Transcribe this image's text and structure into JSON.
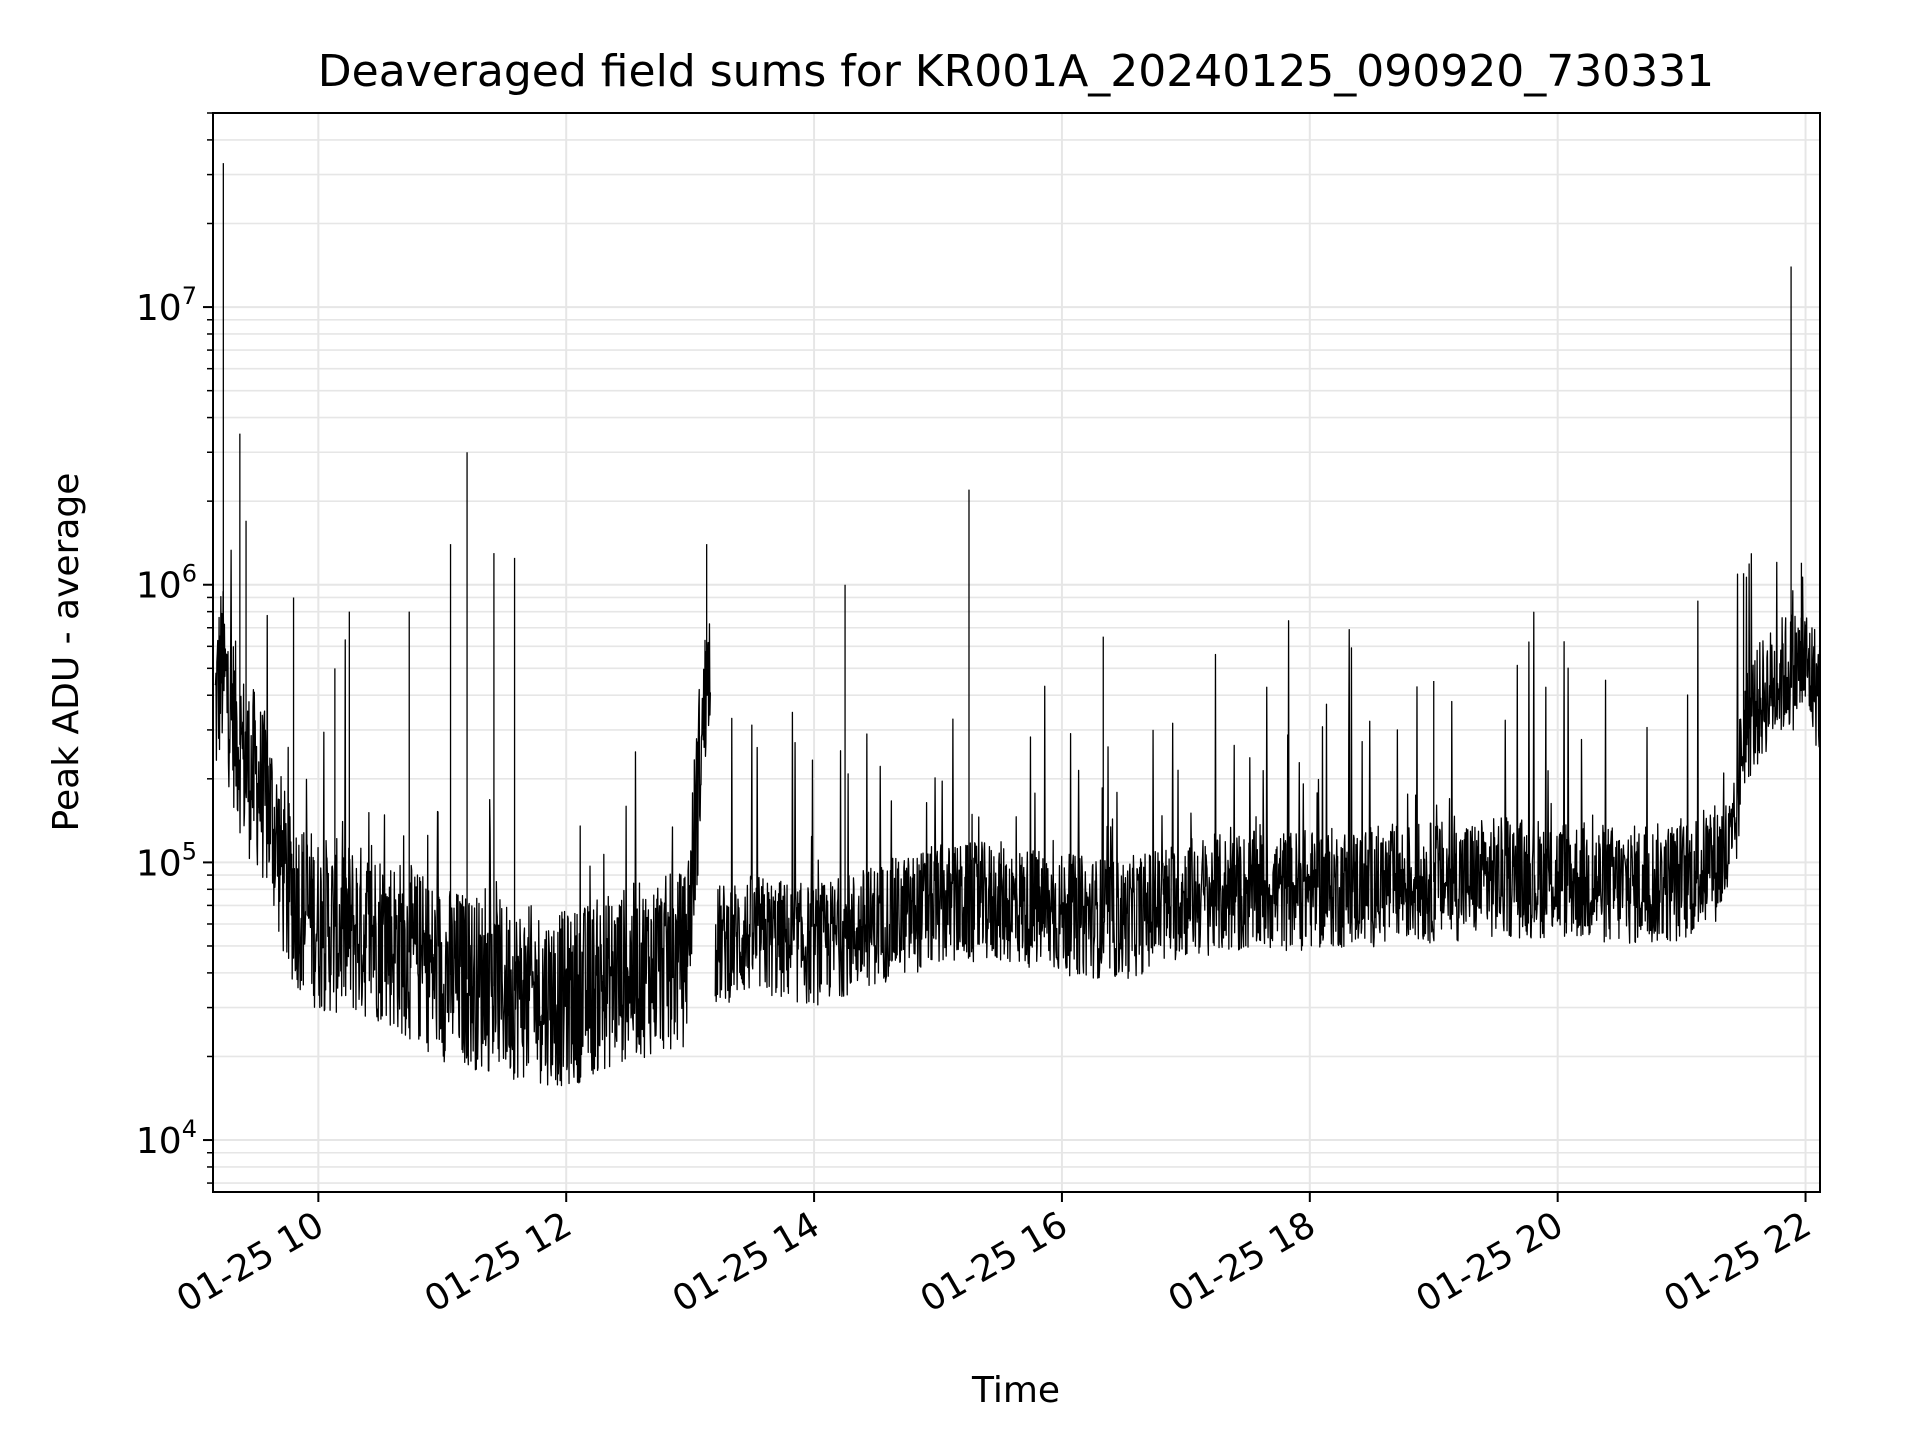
{
  "chart_data": {
    "type": "line",
    "title": "Deaveraged field sums for KR001A_20240125_090920_730331",
    "xlabel": "Time",
    "ylabel": "Peak ADU - average",
    "y_scale": "log",
    "grid": true,
    "grid_minor": true,
    "line_color": "#000000",
    "grid_color": "#e6e6e6",
    "xlim": [
      "2024-01-25 09:09",
      "2024-01-25 22:07"
    ],
    "ylim": [
      6500,
      50000000
    ],
    "x_ticks": [
      {
        "t": "2024-01-25 10:00",
        "label": "01-25 10"
      },
      {
        "t": "2024-01-25 12:00",
        "label": "01-25 12"
      },
      {
        "t": "2024-01-25 14:00",
        "label": "01-25 14"
      },
      {
        "t": "2024-01-25 16:00",
        "label": "01-25 16"
      },
      {
        "t": "2024-01-25 18:00",
        "label": "01-25 18"
      },
      {
        "t": "2024-01-25 20:00",
        "label": "01-25 20"
      },
      {
        "t": "2024-01-25 22:00",
        "label": "01-25 22"
      }
    ],
    "y_ticks": [
      {
        "value": 10000,
        "base": "10",
        "exp": "4"
      },
      {
        "value": 100000,
        "base": "10",
        "exp": "5"
      },
      {
        "value": 1000000,
        "base": "10",
        "exp": "6"
      },
      {
        "value": 10000000,
        "base": "10",
        "exp": "7"
      }
    ],
    "series": [
      {
        "x": [
          "2024-01-25 09:10",
          "2024-01-25 09:13",
          "2024-01-25 09:17",
          "2024-01-25 09:20",
          "2024-01-25 09:25",
          "2024-01-25 09:30",
          "2024-01-25 09:37",
          "2024-01-25 09:45",
          "2024-01-25 10:00",
          "2024-01-25 10:30",
          "2024-01-25 11:00",
          "2024-01-25 11:30",
          "2024-01-25 12:00",
          "2024-01-25 12:30",
          "2024-01-25 12:58",
          "2024-01-25 13:05",
          "2024-01-25 13:10",
          "2024-01-25 13:12",
          "2024-01-25 13:30",
          "2024-01-25 14:00",
          "2024-01-25 14:30",
          "2024-01-25 15:00",
          "2024-01-25 15:30",
          "2024-01-25 16:00",
          "2024-01-25 16:30",
          "2024-01-25 17:00",
          "2024-01-25 17:30",
          "2024-01-25 18:00",
          "2024-01-25 18:30",
          "2024-01-25 19:00",
          "2024-01-25 19:30",
          "2024-01-25 20:00",
          "2024-01-25 20:30",
          "2024-01-25 21:00",
          "2024-01-25 21:25",
          "2024-01-25 21:30",
          "2024-01-25 21:40",
          "2024-01-25 21:50",
          "2024-01-25 22:00",
          "2024-01-25 22:07"
        ],
        "values": [
          350000,
          500000,
          380000,
          300000,
          220000,
          200000,
          150000,
          80000,
          60000,
          55000,
          40000,
          35000,
          32000,
          40000,
          45000,
          250000,
          600000,
          50000,
          55000,
          50000,
          60000,
          70000,
          72000,
          65000,
          62000,
          75000,
          78000,
          80000,
          82000,
          85000,
          88000,
          88000,
          82000,
          85000,
          110000,
          300000,
          400000,
          480000,
          520000,
          400000
        ]
      },
      {
        "name": "",
        "spikes": [
          {
            "t": "2024-01-25 09:14",
            "value": 33000000
          },
          {
            "t": "2024-01-25 09:22",
            "value": 3500000
          },
          {
            "t": "2024-01-25 09:25",
            "value": 1700000
          },
          {
            "t": "2024-01-25 09:48",
            "value": 900000
          },
          {
            "t": "2024-01-25 10:08",
            "value": 500000
          },
          {
            "t": "2024-01-25 10:15",
            "value": 800000
          },
          {
            "t": "2024-01-25 10:44",
            "value": 800000
          },
          {
            "t": "2024-01-25 11:04",
            "value": 1400000
          },
          {
            "t": "2024-01-25 11:12",
            "value": 3000000
          },
          {
            "t": "2024-01-25 11:25",
            "value": 1300000
          },
          {
            "t": "2024-01-25 11:35",
            "value": 1250000
          },
          {
            "t": "2024-01-25 13:08",
            "value": 1400000
          },
          {
            "t": "2024-01-25 14:15",
            "value": 1000000
          },
          {
            "t": "2024-01-25 15:15",
            "value": 2200000
          },
          {
            "t": "2024-01-25 16:20",
            "value": 650000
          },
          {
            "t": "2024-01-25 19:00",
            "value": 450000
          },
          {
            "t": "2024-01-25 21:30",
            "value": 1100000
          },
          {
            "t": "2024-01-25 21:53",
            "value": 14000000
          },
          {
            "t": "2024-01-25 21:58",
            "value": 1200000
          }
        ]
      }
    ]
  }
}
